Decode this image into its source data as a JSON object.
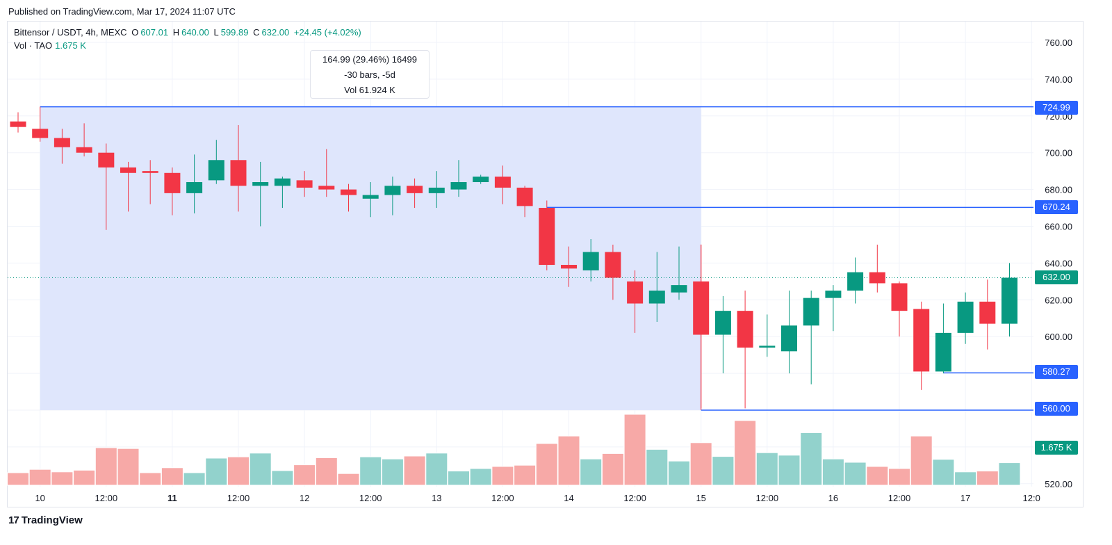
{
  "header": {
    "published": "Published on TradingView.com, Mar 17, 2024 11:07 UTC"
  },
  "legend": {
    "symbol": "Bittensor / USDT, 4h, MEXC",
    "o_label": "O",
    "o_value": "607.01",
    "h_label": "H",
    "h_value": "640.00",
    "l_label": "L",
    "l_value": "599.89",
    "c_label": "C",
    "c_value": "632.00",
    "change": "+24.45 (+4.02%)"
  },
  "vol_legend": {
    "label": "Vol · TAO",
    "value": "1.675 K"
  },
  "tooltip": {
    "line1": "164.99 (29.46%) 16499",
    "line2": "-30 bars, -5d",
    "line3": "Vol 61.924 K"
  },
  "price_tags": {
    "high": "724.99",
    "mid": "670.24",
    "current": "632.00",
    "low1": "580.27",
    "low2": "560.00",
    "volume": "1.675 K"
  },
  "footer": {
    "brand": "TradingView",
    "logo": "17"
  },
  "colors": {
    "up": "#089981",
    "down": "#f23645",
    "up_vol": "#92d2cc",
    "down_vol": "#f7a9a7",
    "range_fill": "#dfe6fc",
    "line": "#2962ff"
  },
  "chart_data": {
    "type": "candlestick",
    "interval": "4h",
    "y_ticks": [
      520,
      540,
      560,
      580,
      600,
      620,
      640,
      660,
      680,
      700,
      720,
      740,
      760
    ],
    "y_tick_labels": [
      "520.00",
      "",
      "560.00",
      "580.00",
      "600.00",
      "620.00",
      "640.00",
      "660.00",
      "680.00",
      "700.00",
      "720.00",
      "740.00",
      "760.00"
    ],
    "ylim": [
      516,
      768
    ],
    "x_labels": [
      {
        "i": 1,
        "text": "10",
        "bold": false
      },
      {
        "i": 4,
        "text": "12:00",
        "bold": false
      },
      {
        "i": 7,
        "text": "11",
        "bold": true
      },
      {
        "i": 10,
        "text": "12:00",
        "bold": false
      },
      {
        "i": 13,
        "text": "12",
        "bold": false
      },
      {
        "i": 16,
        "text": "12:00",
        "bold": false
      },
      {
        "i": 19,
        "text": "13",
        "bold": false
      },
      {
        "i": 22,
        "text": "12:00",
        "bold": false
      },
      {
        "i": 25,
        "text": "14",
        "bold": false
      },
      {
        "i": 28,
        "text": "12:00",
        "bold": false
      },
      {
        "i": 31,
        "text": "15",
        "bold": false
      },
      {
        "i": 34,
        "text": "12:00",
        "bold": false
      },
      {
        "i": 37,
        "text": "16",
        "bold": false
      },
      {
        "i": 40,
        "text": "12:00",
        "bold": false
      },
      {
        "i": 43,
        "text": "17",
        "bold": false
      },
      {
        "i": 46,
        "text": "12:0",
        "bold": false
      }
    ],
    "candles": [
      {
        "o": 717,
        "h": 722,
        "l": 711,
        "c": 714
      },
      {
        "o": 713,
        "h": 725,
        "l": 706,
        "c": 708
      },
      {
        "o": 708,
        "h": 713,
        "l": 694,
        "c": 703
      },
      {
        "o": 703,
        "h": 716,
        "l": 698,
        "c": 700
      },
      {
        "o": 700,
        "h": 705,
        "l": 658,
        "c": 692
      },
      {
        "o": 692,
        "h": 695,
        "l": 668,
        "c": 689
      },
      {
        "o": 690,
        "h": 696,
        "l": 672,
        "c": 689
      },
      {
        "o": 689,
        "h": 692,
        "l": 666,
        "c": 678
      },
      {
        "o": 678,
        "h": 699,
        "l": 667,
        "c": 684
      },
      {
        "o": 685,
        "h": 707,
        "l": 683,
        "c": 696
      },
      {
        "o": 696,
        "h": 715,
        "l": 668,
        "c": 682
      },
      {
        "o": 682,
        "h": 695,
        "l": 660,
        "c": 684
      },
      {
        "o": 682,
        "h": 687,
        "l": 670,
        "c": 686
      },
      {
        "o": 685,
        "h": 690,
        "l": 676,
        "c": 681
      },
      {
        "o": 682,
        "h": 702,
        "l": 676,
        "c": 680
      },
      {
        "o": 680,
        "h": 683,
        "l": 668,
        "c": 677
      },
      {
        "o": 675,
        "h": 684,
        "l": 665,
        "c": 677
      },
      {
        "o": 677,
        "h": 687,
        "l": 666,
        "c": 682
      },
      {
        "o": 682,
        "h": 686,
        "l": 670,
        "c": 678
      },
      {
        "o": 678,
        "h": 690,
        "l": 670,
        "c": 681
      },
      {
        "o": 680,
        "h": 696,
        "l": 676,
        "c": 684
      },
      {
        "o": 684,
        "h": 688,
        "l": 683,
        "c": 687
      },
      {
        "o": 687,
        "h": 693,
        "l": 672,
        "c": 681
      },
      {
        "o": 681,
        "h": 682,
        "l": 665,
        "c": 671
      },
      {
        "o": 670,
        "h": 674,
        "l": 636,
        "c": 639
      },
      {
        "o": 639,
        "h": 649,
        "l": 627,
        "c": 637
      },
      {
        "o": 636,
        "h": 653,
        "l": 630,
        "c": 646
      },
      {
        "o": 646,
        "h": 650,
        "l": 620,
        "c": 632
      },
      {
        "o": 630,
        "h": 636,
        "l": 602,
        "c": 618
      },
      {
        "o": 618,
        "h": 646,
        "l": 608,
        "c": 625
      },
      {
        "o": 624,
        "h": 649,
        "l": 620,
        "c": 628
      },
      {
        "o": 630,
        "h": 650,
        "l": 561,
        "c": 601
      },
      {
        "o": 601,
        "h": 622,
        "l": 580,
        "c": 614
      },
      {
        "o": 614,
        "h": 625,
        "l": 561,
        "c": 594
      },
      {
        "o": 594,
        "h": 612,
        "l": 589,
        "c": 595
      },
      {
        "o": 592,
        "h": 625,
        "l": 580,
        "c": 606
      },
      {
        "o": 606,
        "h": 625,
        "l": 574,
        "c": 621
      },
      {
        "o": 621,
        "h": 628,
        "l": 603,
        "c": 625
      },
      {
        "o": 625,
        "h": 643,
        "l": 618,
        "c": 635
      },
      {
        "o": 635,
        "h": 650,
        "l": 624,
        "c": 629
      },
      {
        "o": 629,
        "h": 630,
        "l": 600,
        "c": 614
      },
      {
        "o": 615,
        "h": 619,
        "l": 571,
        "c": 581
      },
      {
        "o": 581,
        "h": 618,
        "l": 580,
        "c": 602
      },
      {
        "o": 602,
        "h": 624,
        "l": 596,
        "c": 619
      },
      {
        "o": 619,
        "h": 631,
        "l": 593,
        "c": 607
      },
      {
        "o": 607,
        "h": 640,
        "l": 600,
        "c": 632
      }
    ],
    "volume_ratio": [
      0.3,
      0.38,
      0.32,
      0.36,
      0.9,
      0.88,
      0.3,
      0.42,
      0.3,
      0.65,
      0.68,
      0.77,
      0.35,
      0.49,
      0.66,
      0.28,
      0.68,
      0.63,
      0.7,
      0.77,
      0.34,
      0.4,
      0.45,
      0.48,
      1.0,
      1.18,
      0.63,
      0.76,
      1.7,
      0.86,
      0.58,
      1.02,
      0.69,
      1.55,
      0.78,
      0.72,
      1.26,
      0.63,
      0.55,
      0.45,
      0.4,
      1.18,
      0.62,
      0.32,
      0.34,
      0.54
    ],
    "measure": {
      "start_index": 1,
      "end_index": 31,
      "from_price": 724.99,
      "to_price": 560.0
    },
    "hlines": [
      {
        "price": 670.24,
        "from_index": 24
      },
      {
        "price": 580.27,
        "from_index": 42
      },
      {
        "price": 560.0,
        "from_index": 31
      }
    ],
    "current_price": 632.0
  }
}
